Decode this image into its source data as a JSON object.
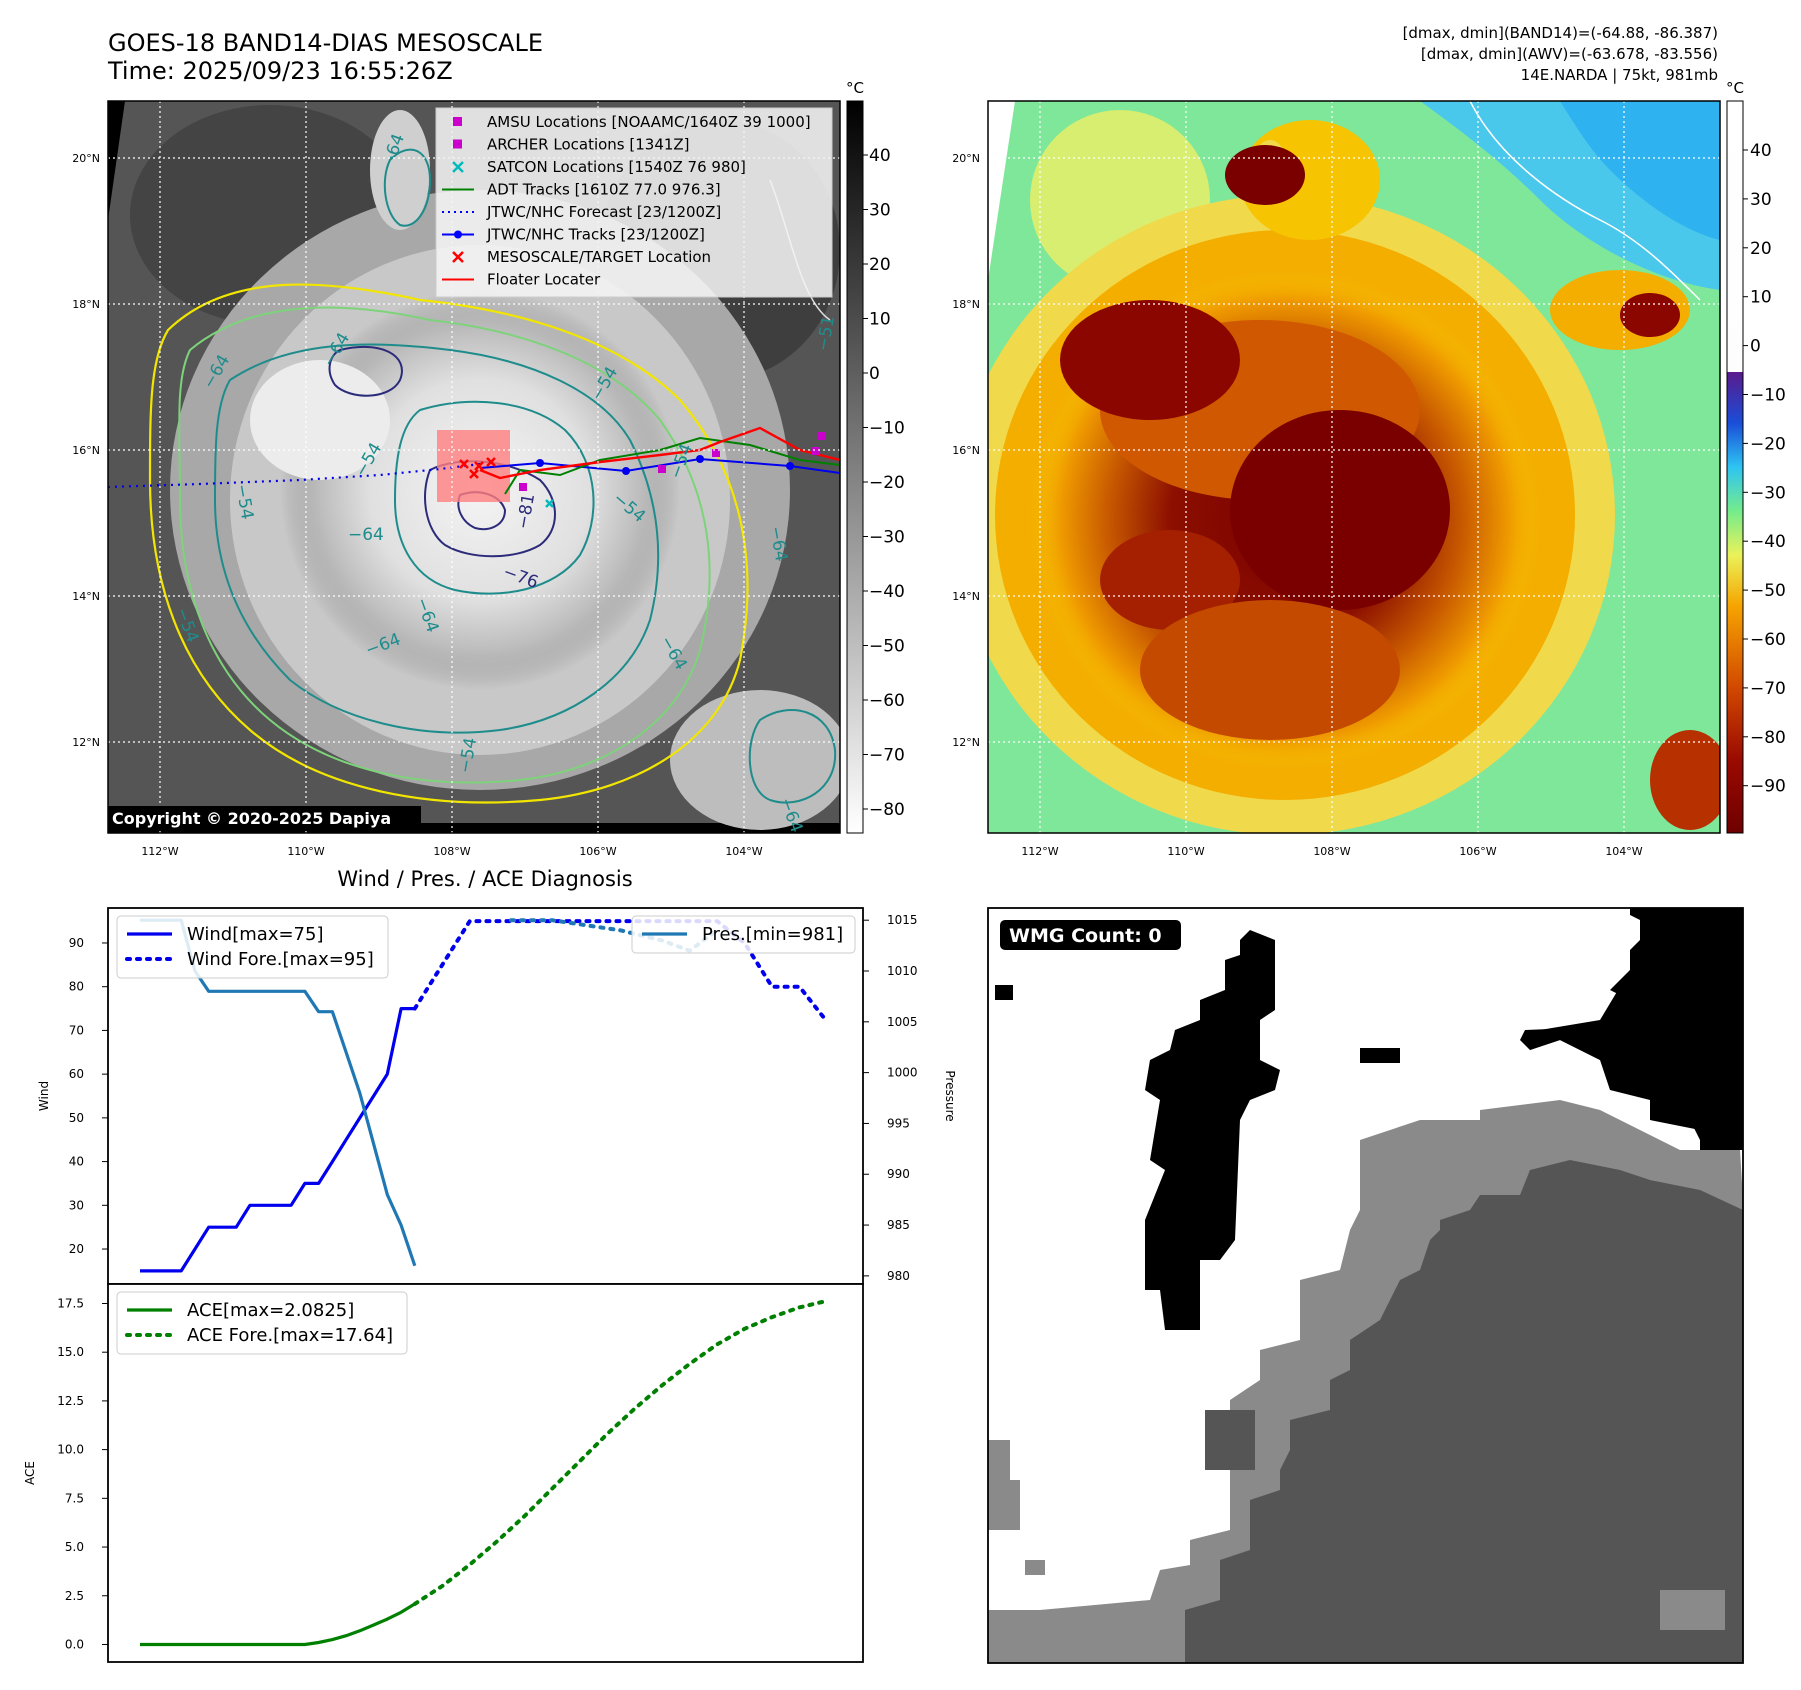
{
  "header": {
    "title_line1": "GOES-18 BAND14-DIAS MESOSCALE",
    "title_line2": "Time: 2025/09/23 16:55:26Z",
    "dmax_line1": "[dmax, dmin](BAND14)=(-64.88, -86.387)",
    "dmax_line2": "[dmax, dmin](AWV)=(-63.678, -83.556)",
    "dmax_line3": "14E.NARDA | 75kt, 981mb"
  },
  "map_left": {
    "lat_ticks": [
      "20°N",
      "18°N",
      "16°N",
      "14°N",
      "12°N"
    ],
    "lon_ticks": [
      "112°W",
      "110°W",
      "108°W",
      "106°W",
      "104°W"
    ],
    "colorbar_unit": "°C",
    "colorbar_ticks": [
      "40",
      "30",
      "20",
      "10",
      "0",
      "−10",
      "−20",
      "−30",
      "−40",
      "−50",
      "−60",
      "−70",
      "−80"
    ],
    "contour_labels": [
      "−64",
      "−64",
      "−64",
      "−54",
      "−54",
      "−64",
      "−76",
      "−81",
      "−54",
      "−54",
      "−64",
      "−64",
      "−64",
      "−54",
      "−51",
      "−54",
      "−64",
      "−54",
      "−64"
    ],
    "legend": [
      {
        "label": "AMSU Locations [NOAAMC/1640Z 39 1000]",
        "color": "#cc00cc",
        "marker": "square"
      },
      {
        "label": "ARCHER Locations [1341Z]",
        "color": "#cc00cc",
        "marker": "square"
      },
      {
        "label": "SATCON Locations [1540Z 76 980]",
        "color": "#00bbbb",
        "marker": "x"
      },
      {
        "label": "ADT Tracks [1610Z 77.0 976.3]",
        "color": "#008000",
        "marker": "line"
      },
      {
        "label": "JTWC/NHC Forecast [23/1200Z]",
        "color": "#0000ff",
        "marker": "dotted"
      },
      {
        "label": "JTWC/NHC Tracks [23/1200Z]",
        "color": "#0000ff",
        "marker": "line-dot"
      },
      {
        "label": "MESOSCALE/TARGET Location",
        "color": "#ff0000",
        "marker": "x"
      },
      {
        "label": "Floater Locater",
        "color": "#ff0000",
        "marker": "line"
      }
    ],
    "copyright": "Copyright © 2020-2025 Dapiya"
  },
  "map_right": {
    "lat_ticks": [
      "20°N",
      "18°N",
      "16°N",
      "14°N",
      "12°N"
    ],
    "lon_ticks": [
      "112°W",
      "110°W",
      "108°W",
      "106°W",
      "104°W"
    ],
    "colorbar_unit": "°C",
    "colorbar_ticks": [
      "40",
      "30",
      "20",
      "10",
      "0",
      "−10",
      "−20",
      "−30",
      "−40",
      "−50",
      "−60",
      "−70",
      "−80",
      "−90"
    ]
  },
  "chart_data": [
    {
      "type": "line",
      "title": "Wind / Pres. / ACE Diagnosis",
      "ylabel": "Wind",
      "y2label": "Pressure",
      "ylim": [
        12,
        98
      ],
      "y2lim": [
        979.2,
        1016.2
      ],
      "yticks": [
        20,
        30,
        40,
        50,
        60,
        70,
        80,
        90
      ],
      "y2ticks": [
        980,
        985,
        990,
        995,
        1000,
        1005,
        1010,
        1015
      ],
      "legend_left": "top-left",
      "legend_right": "top-right",
      "series": [
        {
          "name": "Wind[max=75]",
          "axis": "left",
          "style": "solid",
          "color": "#0000ee",
          "x": [
            0,
            1,
            2,
            3,
            4,
            5,
            6,
            7,
            8,
            9,
            10,
            11,
            12,
            13,
            14,
            15,
            16,
            17,
            18,
            19,
            20
          ],
          "values": [
            15,
            15,
            15,
            15,
            20,
            25,
            25,
            25,
            30,
            30,
            30,
            30,
            35,
            35,
            40,
            45,
            50,
            55,
            60,
            75,
            75
          ]
        },
        {
          "name": "Wind Fore.[max=95]",
          "axis": "left",
          "style": "dotted",
          "color": "#0000ee",
          "x": [
            20,
            22,
            24,
            26,
            28,
            30,
            32,
            34,
            36,
            38,
            40,
            42,
            44,
            46,
            48,
            50
          ],
          "values": [
            75,
            85,
            95,
            95,
            95,
            95,
            95,
            95,
            95,
            95,
            95,
            95,
            90,
            80,
            80,
            72
          ]
        },
        {
          "name": "Pres.[min=981]",
          "axis": "right",
          "style": "solid",
          "color": "#1f77b4",
          "x": [
            0,
            3,
            4,
            5,
            6,
            12,
            13,
            14,
            15,
            16,
            17,
            18,
            19,
            20
          ],
          "values": [
            1015,
            1015,
            1010,
            1008,
            1008,
            1008,
            1006,
            1006,
            1002,
            998,
            993,
            988,
            985,
            981
          ]
        },
        {
          "name": "",
          "axis": "right",
          "style": "dotted",
          "color": "#1f77b4",
          "x": [
            27,
            30,
            35,
            38,
            40,
            41,
            42
          ],
          "values": [
            1015,
            1015,
            1014,
            1013,
            1012,
            1013,
            1014
          ]
        }
      ]
    },
    {
      "type": "line",
      "ylabel": "ACE",
      "ylim": [
        -0.9,
        18.5
      ],
      "yticks": [
        0.0,
        2.5,
        5.0,
        7.5,
        10.0,
        12.5,
        15.0,
        17.5
      ],
      "ytick_labels": [
        "0.0",
        "2.5",
        "5.0",
        "7.5",
        "10.0",
        "12.5",
        "15.0",
        "17.5"
      ],
      "legend": "top-left",
      "series": [
        {
          "name": "ACE[max=2.0825]",
          "style": "solid",
          "color": "#008000",
          "x": [
            0,
            4,
            8,
            12,
            13,
            14,
            15,
            16,
            17,
            18,
            19,
            20
          ],
          "values": [
            0,
            0,
            0,
            0,
            0.1,
            0.25,
            0.45,
            0.7,
            1.0,
            1.3,
            1.65,
            2.08
          ]
        },
        {
          "name": "ACE Fore.[max=17.64]",
          "style": "dotted",
          "color": "#008000",
          "x": [
            20,
            22,
            24,
            26,
            28,
            30,
            32,
            34,
            36,
            38,
            40,
            42,
            44,
            46,
            48,
            50
          ],
          "values": [
            2.08,
            3.0,
            4.1,
            5.3,
            6.6,
            8.0,
            9.4,
            10.8,
            12.1,
            13.3,
            14.4,
            15.4,
            16.2,
            16.8,
            17.3,
            17.64
          ]
        }
      ]
    }
  ],
  "wmg_panel": {
    "badge": "WMG Count: 0"
  }
}
